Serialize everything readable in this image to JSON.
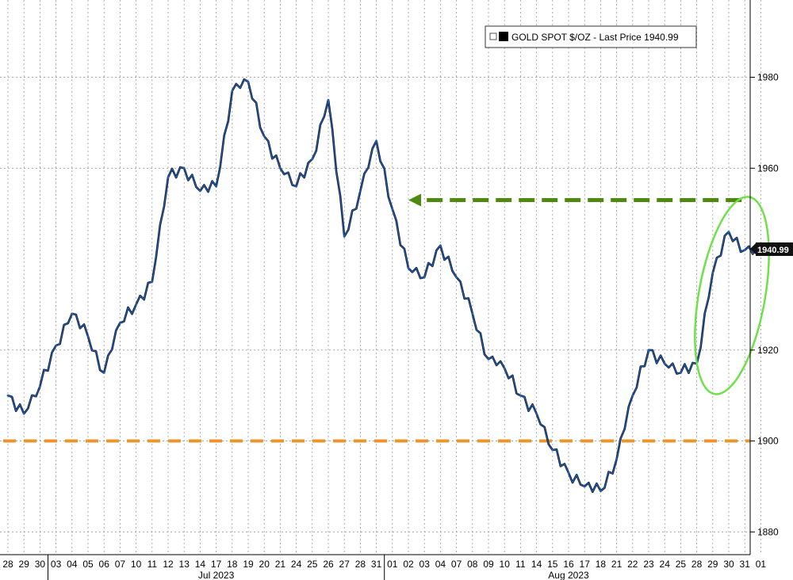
{
  "chart_data": {
    "type": "line",
    "series": [
      {
        "name": "GOLD SPOT $/OZ - Last Price 1940.99",
        "color": "#1f5fbf",
        "x": [
          "06-28",
          "06-29",
          "06-30",
          "07-03",
          "07-04",
          "07-05",
          "07-06",
          "07-07",
          "07-10",
          "07-11",
          "07-12",
          "07-13",
          "07-14",
          "07-17",
          "07-18",
          "07-19",
          "07-20",
          "07-21",
          "07-24",
          "07-25",
          "07-26",
          "07-27",
          "07-28",
          "07-31",
          "08-01",
          "08-02",
          "08-03",
          "08-04",
          "08-07",
          "08-08",
          "08-09",
          "08-10",
          "08-11",
          "08-14",
          "08-15",
          "08-16",
          "08-17",
          "08-18",
          "08-21",
          "08-22",
          "08-23",
          "08-24",
          "08-25",
          "08-28",
          "08-29",
          "08-30",
          "08-31",
          "09-01"
        ],
        "values": [
          1910,
          1906,
          1912,
          1921,
          1928,
          1923,
          1915,
          1926,
          1930,
          1935,
          1958,
          1960,
          1955,
          1956,
          1977,
          1979,
          1967,
          1960,
          1956,
          1962,
          1975,
          1945,
          1955,
          1966,
          1951,
          1938,
          1936,
          1943,
          1936,
          1928,
          1918,
          1916,
          1910,
          1906,
          1898,
          1893,
          1890,
          1889,
          1896,
          1910,
          1920,
          1917,
          1915,
          1917,
          1937,
          1946,
          1942,
          1940.99
        ]
      }
    ],
    "ylim": [
      1875,
      1997
    ],
    "yticks": [
      1880,
      1900,
      1920,
      1960,
      1980
    ],
    "last_price_label": "1940.99",
    "legend": {
      "text": "GOLD SPOT $/OZ - Last Price 1940.99",
      "position": "top-right"
    },
    "day_labels": [
      "28",
      "29",
      "30",
      "03",
      "04",
      "05",
      "06",
      "07",
      "10",
      "11",
      "12",
      "13",
      "14",
      "17",
      "18",
      "19",
      "20",
      "21",
      "24",
      "25",
      "26",
      "27",
      "28",
      "31",
      "01",
      "02",
      "03",
      "04",
      "07",
      "08",
      "09",
      "10",
      "11",
      "14",
      "15",
      "16",
      "17",
      "18",
      "21",
      "22",
      "23",
      "24",
      "25",
      "28",
      "29",
      "30",
      "31",
      "01"
    ],
    "month_labels": [
      {
        "text": "Jul 2023",
        "at_index": 13
      },
      {
        "text": "Aug 2023",
        "at_index": 35
      }
    ],
    "annotations": {
      "support_level": 1900,
      "support_color": "#e8962e",
      "arrow_level": 1953,
      "arrow_from_index": 46,
      "arrow_to_index": 25,
      "arrow_color": "#4f8a10",
      "ellipse_color": "#6fe04a",
      "ellipse_center_index": 45,
      "ellipse_center_value": 1932,
      "ellipse_half_width_days": 1.8,
      "ellipse_half_height_value": 22
    },
    "grid": true
  }
}
